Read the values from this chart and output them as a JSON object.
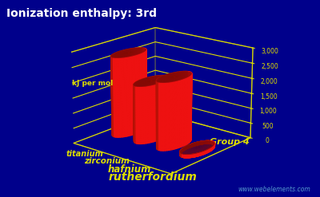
{
  "title": "Ionization enthalpy: 3rd",
  "ylabel": "kJ per mol",
  "group_label": "Group 4",
  "watermark": "www.webelements.com",
  "elements": [
    "titanium",
    "zirconium",
    "hafnium",
    "rutherfordium"
  ],
  "values": [
    2652,
    1894,
    2213,
    100
  ],
  "bar_color_face": "#ee1111",
  "bar_color_dark": "#991100",
  "background_color": "#00008b",
  "grid_color": "#dddd00",
  "title_color": "#ffffff",
  "label_color": "#dddd00",
  "yticks": [
    0,
    500,
    1000,
    1500,
    2000,
    2500,
    3000
  ],
  "figsize": [
    4.0,
    2.47
  ],
  "dpi": 100,
  "elev": 18,
  "azim": -50
}
